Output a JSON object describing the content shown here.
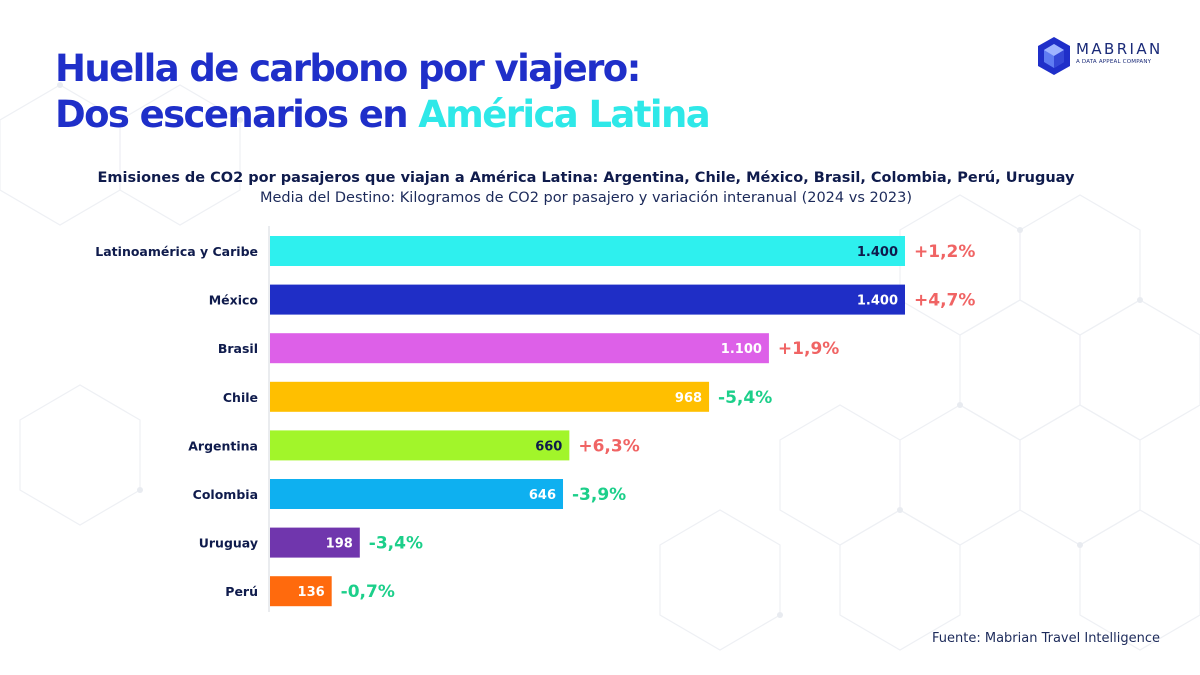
{
  "header": {
    "title_line1": "Huella de carbono por viajero:",
    "title_line2_plain": "Dos escenarios en ",
    "title_line2_accent": "América Latina"
  },
  "logo": {
    "name": "MABRIAN",
    "tagline": "A DATA APPEAL COMPANY"
  },
  "chart_data": {
    "type": "bar",
    "orientation": "horizontal",
    "title": "Emisiones de CO2 por pasajeros que viajan a América Latina: Argentina, Chile, México, Brasil, Colombia, Perú, Uruguay",
    "subtitle": "Media del Destino: Kilogramos de CO2 por pasajero y variación interanual (2024 vs 2023)",
    "xlim": [
      0,
      1400
    ],
    "grid": false,
    "legend": "none",
    "categories": [
      "Latinoamérica y Caribe",
      "México",
      "Brasil",
      "Chile",
      "Argentina",
      "Colombia",
      "Uruguay",
      "Perú"
    ],
    "values": [
      1400,
      1400,
      1100,
      968,
      660,
      646,
      198,
      136
    ],
    "value_labels": [
      "1.400",
      "1.400",
      "1.100",
      "968",
      "660",
      "646",
      "198",
      "136"
    ],
    "changes": [
      "+1,2%",
      "+4,7%",
      "+1,9%",
      "-5,4%",
      "+6,3%",
      "-3,9%",
      "-3,4%",
      "-0,7%"
    ],
    "colors": [
      "#2ef0ee",
      "#1f2ec6",
      "#dd60e8",
      "#ffbf00",
      "#a2f52a",
      "#0eb0f0",
      "#7036ad",
      "#ff6a0d"
    ],
    "value_label_colors": [
      "#0f1b4c",
      "#ffffff",
      "#ffffff",
      "#ffffff",
      "#0f1b4c",
      "#ffffff",
      "#ffffff",
      "#ffffff"
    ],
    "positive_color": "#f06464",
    "negative_color": "#1ccf8a"
  },
  "footer": {
    "source": "Fuente: Mabrian Travel Intelligence"
  }
}
